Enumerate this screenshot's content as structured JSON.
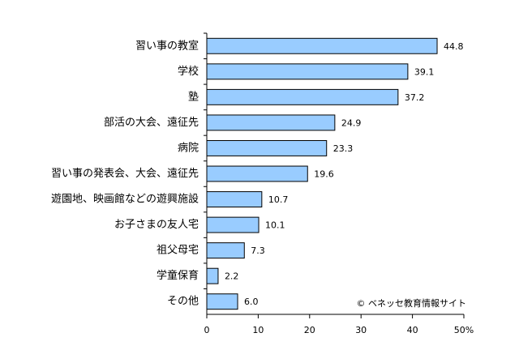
{
  "chart_data": {
    "type": "bar",
    "orientation": "horizontal",
    "categories": [
      "習い事の教室",
      "学校",
      "塾",
      "部活の大会、遠征先",
      "病院",
      "習い事の発表会、大会、遠征先",
      "遊園地、映画館などの遊興施設",
      "お子さまの友人宅",
      "祖父母宅",
      "学童保育",
      "その他"
    ],
    "values": [
      44.8,
      39.1,
      37.2,
      24.9,
      23.3,
      19.6,
      10.7,
      10.1,
      7.3,
      2.2,
      6.0
    ],
    "value_labels": [
      "44.8",
      "39.1",
      "37.2",
      "24.9",
      "23.3",
      "19.6",
      "10.7",
      "10.1",
      "7.3",
      "2.2",
      "6.0"
    ],
    "color": "#99ccff",
    "xlim": [
      0,
      50
    ],
    "xticks": [
      0,
      10,
      20,
      30,
      40,
      {
        "value": 50,
        "label": "50%"
      }
    ],
    "grid": false,
    "annotation": "© ベネッセ教育情報サイト"
  }
}
